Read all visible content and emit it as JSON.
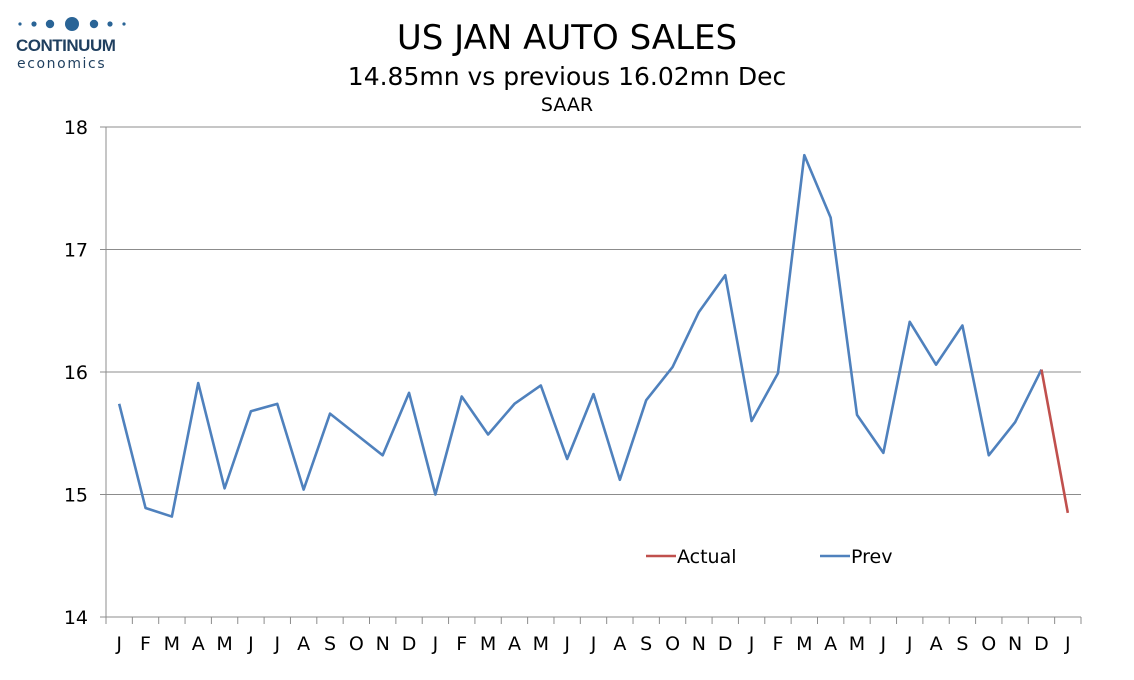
{
  "logo": {
    "name": "CONTINUUM",
    "sub": "economics",
    "color": "#2a6496"
  },
  "chart_data": {
    "type": "line",
    "title": "US JAN AUTO SALES",
    "subtitle": "14.85mn vs previous 16.02mn Dec",
    "subtitle2": "SAAR",
    "categories": [
      "J",
      "F",
      "M",
      "A",
      "M",
      "J",
      "J",
      "A",
      "S",
      "O",
      "N",
      "D",
      "J",
      "F",
      "M",
      "A",
      "M",
      "J",
      "J",
      "A",
      "S",
      "O",
      "N",
      "D",
      "J",
      "F",
      "M",
      "A",
      "M",
      "J",
      "J",
      "A",
      "S",
      "O",
      "N",
      "D",
      "J"
    ],
    "ylim": [
      14,
      18
    ],
    "yticks": [
      14,
      15,
      16,
      17,
      18
    ],
    "grid": true,
    "legend_position": "bottom-center",
    "series": [
      {
        "name": "Actual",
        "color": "#c0504d",
        "values": [
          null,
          null,
          null,
          null,
          null,
          null,
          null,
          null,
          null,
          null,
          null,
          null,
          null,
          null,
          null,
          null,
          null,
          null,
          null,
          null,
          null,
          null,
          null,
          null,
          null,
          null,
          null,
          null,
          null,
          null,
          null,
          null,
          null,
          null,
          null,
          16.02,
          14.85
        ]
      },
      {
        "name": "Prev",
        "color": "#4f81bd",
        "values": [
          15.74,
          14.89,
          14.82,
          15.91,
          15.05,
          15.68,
          15.74,
          15.04,
          15.66,
          15.49,
          15.32,
          15.83,
          15.0,
          15.8,
          15.49,
          15.74,
          15.89,
          15.29,
          15.82,
          15.12,
          15.77,
          16.04,
          16.49,
          16.79,
          15.6,
          15.99,
          17.77,
          17.26,
          15.65,
          15.34,
          16.41,
          16.06,
          16.38,
          15.32,
          15.59,
          16.02,
          null
        ]
      }
    ]
  }
}
